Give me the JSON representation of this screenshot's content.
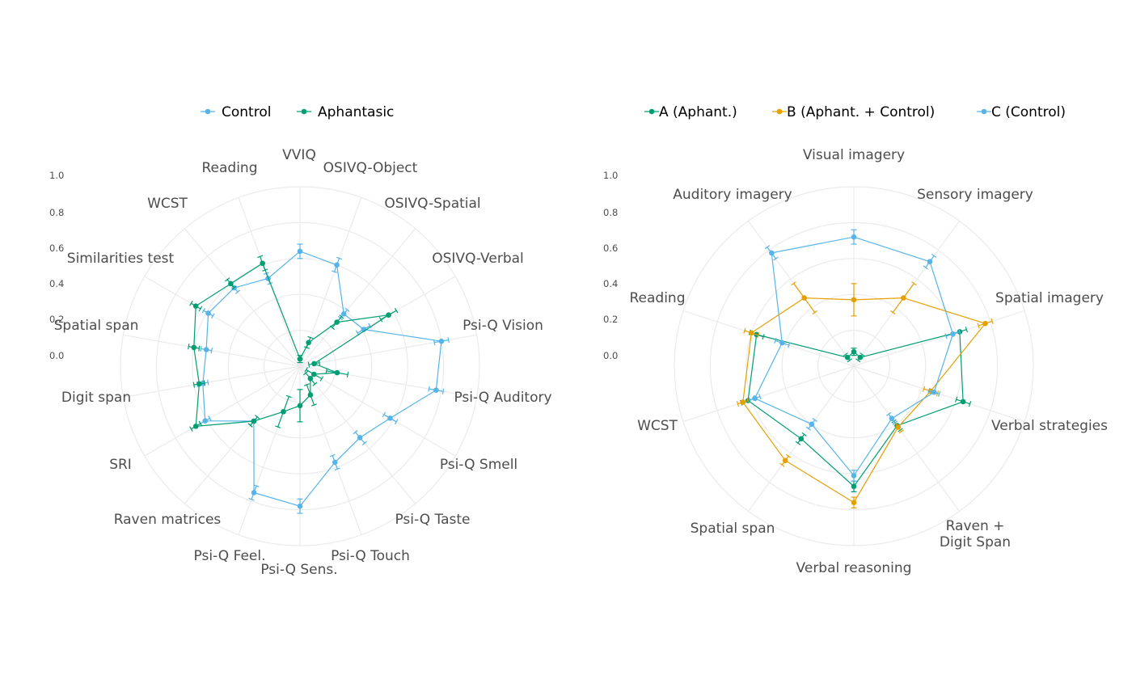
{
  "chart_data": [
    {
      "type": "radar",
      "rlim": [
        0,
        1
      ],
      "grid": true,
      "legend_position": "top",
      "tick_labels": [
        "1.0",
        "0.8",
        "0.6",
        "0.4",
        "0.2",
        "0.0"
      ],
      "tick_values": [
        1.0,
        0.8,
        0.6,
        0.4,
        0.2,
        0.0
      ],
      "categories": [
        "VVIQ",
        "OSIVQ-Object",
        "OSIVQ-Spatial",
        "OSIVQ-Verbal",
        "Psi-Q Vision",
        "Psi-Q Auditory",
        "Psi-Q Smell",
        "Psi-Q Taste",
        "Psi-Q Touch",
        "Psi-Q Sens.",
        "Psi-Q Feel.",
        "Raven matrices",
        "SRI",
        "Digit span",
        "Spatial span",
        "Similarities test",
        "WCST",
        "Reading"
      ],
      "series": [
        {
          "name": "Control",
          "color": "#56B4E9",
          "values": [
            0.64,
            0.6,
            0.38,
            0.41,
            0.8,
            0.77,
            0.58,
            0.52,
            0.57,
            0.78,
            0.75,
            0.4,
            0.61,
            0.55,
            0.53,
            0.59,
            0.57,
            0.52
          ],
          "errors": [
            0.04,
            0.04,
            0.03,
            0.04,
            0.04,
            0.04,
            0.04,
            0.04,
            0.04,
            0.04,
            0.04,
            0.03,
            0.03,
            0.03,
            0.03,
            0.03,
            0.03,
            0.03
          ]
        },
        {
          "name": "Aphantasic",
          "color": "#009E73",
          "values": [
            0.04,
            0.14,
            0.32,
            0.57,
            0.08,
            0.21,
            0.09,
            0.09,
            0.17,
            0.22,
            0.27,
            0.4,
            0.67,
            0.57,
            0.6,
            0.67,
            0.6,
            0.61
          ],
          "errors": [
            0.02,
            0.03,
            0.04,
            0.05,
            0.03,
            0.06,
            0.05,
            0.04,
            0.06,
            0.09,
            0.09,
            0.03,
            0.03,
            0.03,
            0.03,
            0.03,
            0.03,
            0.04
          ]
        }
      ]
    },
    {
      "type": "radar",
      "rlim": [
        0,
        1
      ],
      "grid": true,
      "legend_position": "top",
      "tick_labels": [
        "1.0",
        "0.8",
        "0.6",
        "0.4",
        "0.2",
        "0.0"
      ],
      "tick_values": [
        1.0,
        0.8,
        0.6,
        0.4,
        0.2,
        0.0
      ],
      "categories": [
        "Visual imagery",
        "Sensory imagery",
        "Spatial imagery",
        "Verbal strategies",
        "Raven +\nDigit Span",
        "Verbal reasoning",
        "Spatial span",
        "WCST",
        "Reading",
        "Auditory imagery"
      ],
      "series": [
        {
          "name": "A (Aphant.)",
          "color": "#009E73",
          "values": [
            0.08,
            0.06,
            0.62,
            0.64,
            0.41,
            0.67,
            0.5,
            0.62,
            0.57,
            0.06
          ],
          "errors": [
            0.02,
            0.02,
            0.04,
            0.04,
            0.03,
            0.03,
            0.03,
            0.04,
            0.04,
            0.02
          ]
        },
        {
          "name": "B (Aphant. + Control)",
          "color": "#E69F00",
          "values": [
            0.37,
            0.47,
            0.77,
            0.45,
            0.42,
            0.76,
            0.65,
            0.65,
            0.6,
            0.47
          ],
          "errors": [
            0.09,
            0.1,
            0.04,
            0.04,
            0.03,
            0.03,
            0.03,
            0.03,
            0.04,
            0.1
          ]
        },
        {
          "name": "C (Control)",
          "color": "#56B4E9",
          "values": [
            0.72,
            0.72,
            0.58,
            0.47,
            0.36,
            0.61,
            0.4,
            0.58,
            0.42,
            0.78
          ],
          "errors": [
            0.04,
            0.04,
            0.04,
            0.03,
            0.03,
            0.03,
            0.03,
            0.03,
            0.04,
            0.04
          ]
        }
      ]
    }
  ]
}
